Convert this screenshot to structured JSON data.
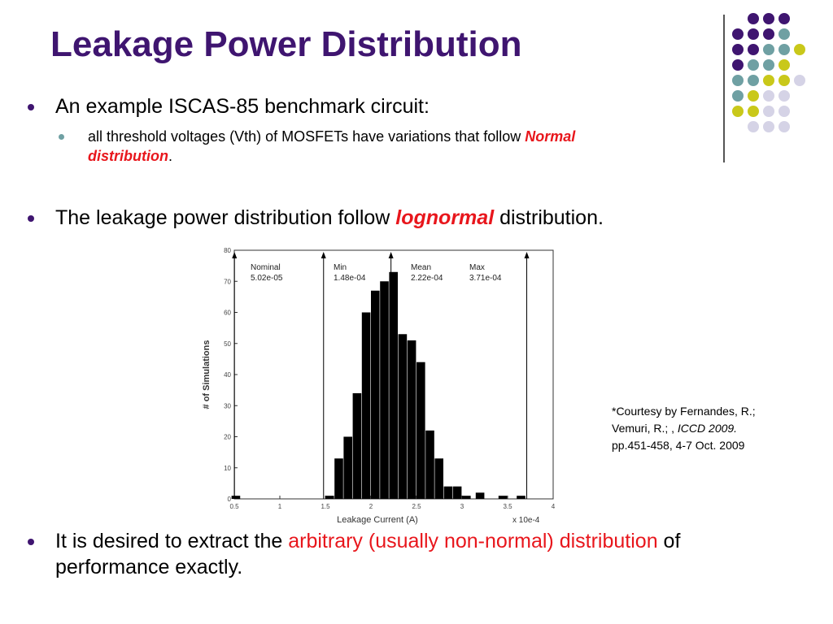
{
  "title": "Leakage Power Distribution",
  "bullets": {
    "b1": "An example ISCAS-85 benchmark circuit:",
    "b1_sub_a": "all threshold voltages (Vth) of MOSFETs have variations that follow ",
    "b1_sub_b": "Normal",
    "b1_sub_c": "distribution",
    "b1_sub_d": ".",
    "b2_a": "The leakage power distribution follow ",
    "b2_b": "lognormal",
    "b2_c": " distribution.",
    "b3_a": "It is desired to extract the ",
    "b3_b": "arbitrary (usually non-normal) distribution",
    "b3_c": " of",
    "b3_d": "performance exactly."
  },
  "courtesy": {
    "line1": "*Courtesy by Fernandes, R.;",
    "line2a": "Vemuri, R.; , ",
    "line2b": "ICCD 2009.",
    "line3": "pp.451-458, 4-7 Oct. 2009"
  },
  "colors": {
    "title": "#3f1570",
    "emphasis": "#e8161c",
    "dot_purple": "#3f1570",
    "dot_teal": "#6fa0a3",
    "dot_yellow": "#c9c81a",
    "dot_lavender": "#d5d3e6"
  },
  "chart_data": {
    "type": "bar",
    "xlabel": "Leakage Current (A)",
    "ylabel": "# of Simulations",
    "x_multiplier_label": "x 10e-4",
    "xlim": [
      0.5,
      4
    ],
    "ylim": [
      0,
      80
    ],
    "x_ticks": [
      "0.5",
      "1",
      "1.5",
      "2",
      "2.5",
      "3",
      "3.5",
      "4"
    ],
    "y_ticks": [
      "0",
      "10",
      "20",
      "30",
      "40",
      "50",
      "60",
      "70",
      "80"
    ],
    "bin_width": 0.1,
    "bins": [
      {
        "x": 0.52,
        "value": 1
      },
      {
        "x": 1.55,
        "value": 1
      },
      {
        "x": 1.65,
        "value": 13
      },
      {
        "x": 1.75,
        "value": 20
      },
      {
        "x": 1.85,
        "value": 34
      },
      {
        "x": 1.95,
        "value": 60
      },
      {
        "x": 2.05,
        "value": 67
      },
      {
        "x": 2.15,
        "value": 70
      },
      {
        "x": 2.25,
        "value": 73
      },
      {
        "x": 2.35,
        "value": 53
      },
      {
        "x": 2.45,
        "value": 51
      },
      {
        "x": 2.55,
        "value": 44
      },
      {
        "x": 2.65,
        "value": 22
      },
      {
        "x": 2.75,
        "value": 13
      },
      {
        "x": 2.85,
        "value": 4
      },
      {
        "x": 2.95,
        "value": 4
      },
      {
        "x": 3.05,
        "value": 1
      },
      {
        "x": 3.2,
        "value": 2
      },
      {
        "x": 3.45,
        "value": 1
      },
      {
        "x": 3.65,
        "value": 1
      }
    ],
    "markers": [
      {
        "name": "Nominal",
        "value_label": "5.02e-05",
        "x": 0.502
      },
      {
        "name": "Min",
        "value_label": "1.48e-04",
        "x": 1.48
      },
      {
        "name": "Mean",
        "value_label": "2.22e-04",
        "x": 2.22
      },
      {
        "name": "Max",
        "value_label": "3.71e-04",
        "x": 3.71
      }
    ]
  }
}
